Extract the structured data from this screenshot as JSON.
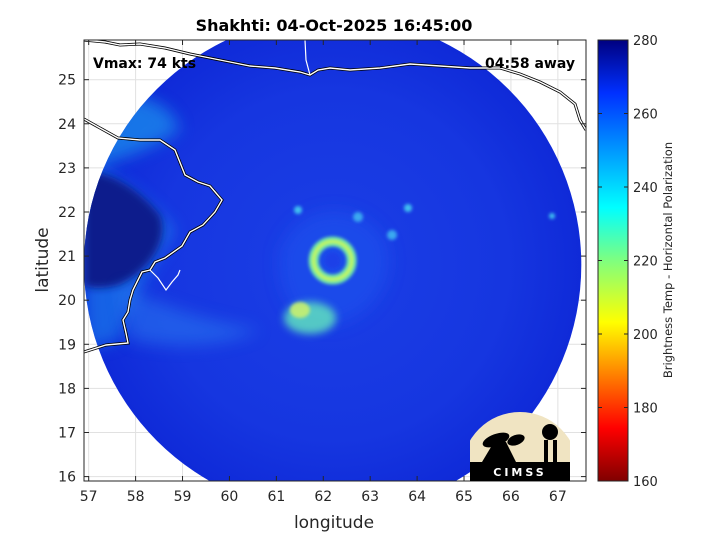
{
  "chart_data": {
    "type": "heatmap",
    "title": "Shakhti: 04-Oct-2025 16:45:00",
    "xlabel": "longitude",
    "ylabel": "latitude",
    "xlim": [
      56.9,
      67.6
    ],
    "ylim": [
      15.9,
      25.9
    ],
    "xticks": [
      57,
      58,
      59,
      60,
      61,
      62,
      63,
      64,
      65,
      66,
      67
    ],
    "yticks": [
      16,
      17,
      18,
      19,
      20,
      21,
      22,
      23,
      24,
      25
    ],
    "grid": true,
    "annotations": {
      "left": "Vmax: 74 kts",
      "right": "04:58 away"
    },
    "colorbar": {
      "label": "Brightness Temp - Horizontal Polarization",
      "range": [
        160,
        280
      ],
      "ticks": [
        160,
        180,
        200,
        220,
        240,
        260,
        280
      ],
      "colormap": "jet"
    },
    "swath": {
      "center_lon": 62.2,
      "center_lat": 20.8,
      "radius_deg": 5.3
    },
    "storm_eye": {
      "lon": 62.2,
      "lat": 20.9
    },
    "logo": "CIMSS"
  }
}
